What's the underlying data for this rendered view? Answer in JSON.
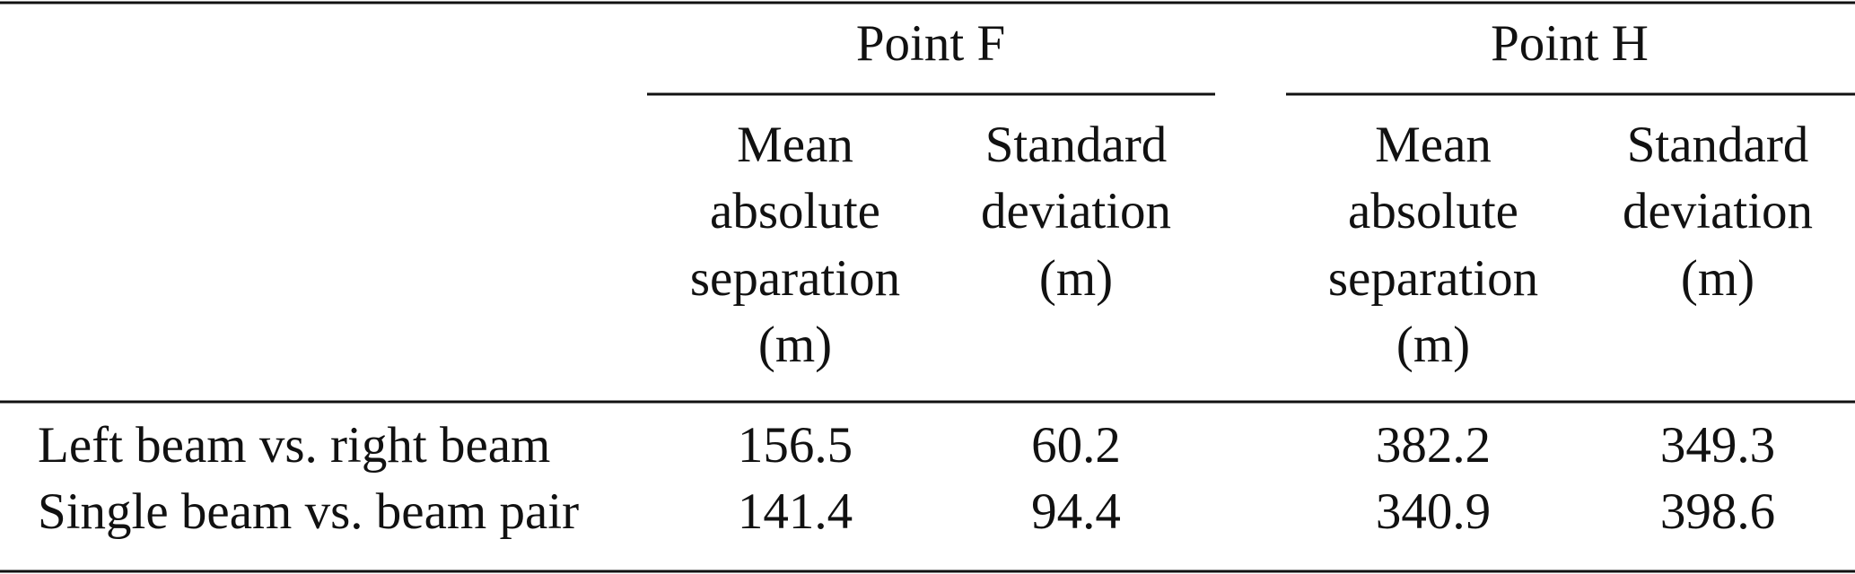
{
  "table": {
    "column_groups": [
      "Point F",
      "Point H"
    ],
    "subheaders": [
      [
        "Mean",
        "absolute",
        "separation",
        "(m)"
      ],
      [
        "Standard",
        "deviation",
        "(m)"
      ],
      [
        "Mean",
        "absolute",
        "separation",
        "(m)"
      ],
      [
        "Standard",
        "deviation",
        "(m)"
      ]
    ],
    "rows": [
      [
        "Left beam vs. right beam",
        156.5,
        60.2,
        382.2,
        349.3
      ],
      [
        "Single beam vs. beam pair",
        141.4,
        94.4,
        340.9,
        398.6
      ]
    ]
  }
}
